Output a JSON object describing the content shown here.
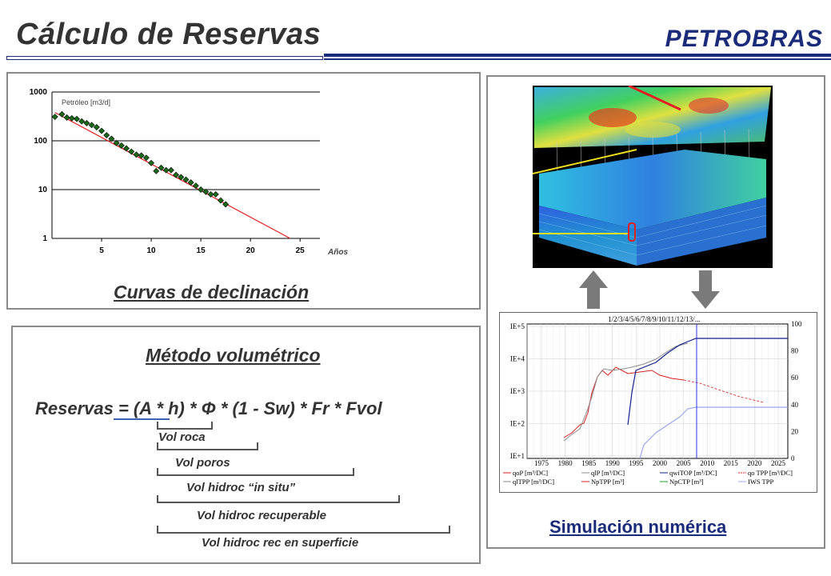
{
  "header": {
    "title": "Cálculo de Reservas",
    "logo": "PETROBRAS"
  },
  "decline": {
    "caption": "Curvas de declinación",
    "chart_data": {
      "type": "scatter",
      "series_label": "Petróleo [m3/d]",
      "xlabel": "Años",
      "x_ticks": [
        "5",
        "10",
        "15",
        "20",
        "25"
      ],
      "y_ticks": [
        "1",
        "10",
        "100",
        "1000"
      ],
      "y_scale": "log",
      "xlim": [
        0,
        27
      ],
      "ylim": [
        1,
        1000
      ],
      "points_x": [
        0.3,
        1,
        1.5,
        2,
        2.5,
        3,
        3.5,
        4,
        4.5,
        5,
        5.5,
        6,
        6.5,
        7,
        7.5,
        8,
        8.5,
        9,
        9.5,
        10,
        10.5,
        11,
        11.5,
        12,
        12.5,
        13,
        13.5,
        14,
        14.5,
        15,
        15.5,
        16,
        16.5,
        17,
        17.5
      ],
      "points_y": [
        310,
        350,
        300,
        290,
        280,
        250,
        230,
        210,
        190,
        160,
        130,
        110,
        90,
        80,
        70,
        60,
        52,
        50,
        45,
        35,
        24,
        28,
        25,
        25,
        20,
        18,
        16,
        14,
        12,
        10,
        9,
        8,
        8,
        6,
        5
      ],
      "trend": {
        "x": [
          0.3,
          24
        ],
        "y": [
          380,
          1
        ]
      },
      "grid": "horizontal"
    }
  },
  "volumetric": {
    "heading": "Método volumétrico",
    "formula": "Reservas = (A * h) * Φ * (1 - Sw) * Fr * Fvol",
    "labels": [
      "Vol roca",
      "Vol poros",
      "Vol hidroc “in situ”",
      "Vol hidroc recuperable",
      "Vol hidroc rec en superficie"
    ]
  },
  "simulation": {
    "caption": "Simulación numérica",
    "chart_header": "1/2/3/4/5/6/7/8/9/10/11/12/13/...",
    "left_ticks": [
      "IE+5",
      "IE+4",
      "IE+3",
      "IE+2",
      "IE+1"
    ],
    "right_ticks": [
      "100",
      "80",
      "60",
      "40",
      "20",
      "0"
    ],
    "x_ticks": [
      "1975",
      "1980",
      "1985",
      "1990",
      "1995",
      "2000",
      "2005",
      "2010",
      "2015",
      "2020",
      "2025"
    ],
    "legend": [
      "qoP [m³/DC]",
      "qlP [m³/DC]",
      "qwiTOP [m³/DC]",
      "qo TPP [m³/DC]",
      "qlTPP [m³/DC]",
      "NpTPP [m³]",
      "NpCTP [m³]",
      "IWS TPP"
    ],
    "colors": {
      "red": "#d42020",
      "gray": "#8c8c8c",
      "navy": "#10208a",
      "blue": "#3030e0",
      "lightblue": "#9aa8f0",
      "green": "#20a020"
    }
  }
}
